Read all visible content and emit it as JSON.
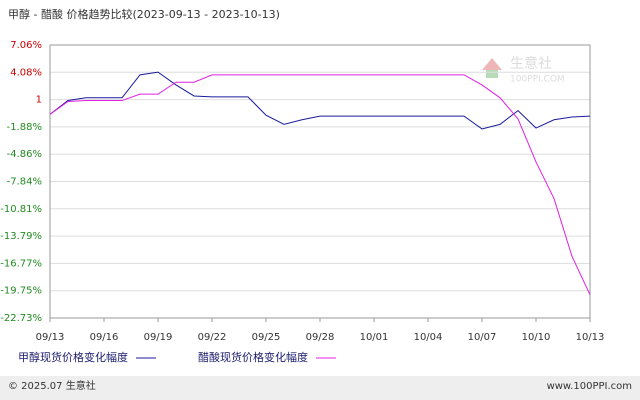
{
  "chart_data": {
    "type": "line",
    "title": "甲醇 - 醋酸 价格趋势比较(2023-09-13 - 2023-10-13)",
    "categories": [
      "09/13",
      null,
      null,
      "09/16",
      null,
      null,
      "09/19",
      null,
      null,
      "09/22",
      null,
      null,
      "09/25",
      null,
      null,
      "09/28",
      null,
      null,
      "10/01",
      null,
      null,
      "10/04",
      null,
      null,
      "10/07",
      null,
      null,
      "10/10",
      null,
      null,
      "10/13"
    ],
    "series": [
      {
        "name": "甲醇现货价格变化幅度",
        "color": "#1a1a9c",
        "values": [
          -0.5,
          1.0,
          1.3,
          1.3,
          1.3,
          3.8,
          4.1,
          2.7,
          1.5,
          1.4,
          1.4,
          1.4,
          -0.6,
          -1.6,
          -1.1,
          -0.7,
          -0.7,
          -0.7,
          -0.7,
          -0.7,
          -0.7,
          -0.7,
          -0.7,
          -0.7,
          -2.1,
          -1.6,
          -0.1,
          -2.0,
          -1.1,
          -0.8,
          -0.7
        ]
      },
      {
        "name": "醋酸现货价格变化幅度",
        "color": "#e020e0",
        "values": [
          -0.5,
          0.9,
          1.0,
          1.0,
          1.0,
          1.7,
          1.7,
          3.0,
          3.0,
          3.8,
          3.8,
          3.8,
          3.8,
          3.8,
          3.8,
          3.8,
          3.8,
          3.8,
          3.8,
          3.8,
          3.8,
          3.8,
          3.8,
          3.8,
          2.7,
          1.3,
          -1.0,
          -5.7,
          -9.7,
          -16.0,
          -20.2
        ]
      }
    ],
    "ylim": [
      -22.73,
      7.06
    ],
    "yticks": [
      {
        "value": 7.06,
        "label": "7.06%"
      },
      {
        "value": 4.08,
        "label": "4.08%"
      },
      {
        "value": 1.1,
        "label": "1"
      },
      {
        "value": -1.88,
        "label": "-1.88%"
      },
      {
        "value": -4.86,
        "label": "-4.86%"
      },
      {
        "value": -7.84,
        "label": "-7.84%"
      },
      {
        "value": -10.81,
        "label": "-10.81%"
      },
      {
        "value": -13.79,
        "label": "-13.79%"
      },
      {
        "value": -16.77,
        "label": "-16.77%"
      },
      {
        "value": -19.75,
        "label": "-19.75%"
      },
      {
        "value": -22.73,
        "label": "-22.73%"
      }
    ],
    "grid": true,
    "watermark": "生意社",
    "watermark_url": "100PPI.COM",
    "footer_left": "© 2025.07 生意社",
    "footer_right": "www.100PPI.com"
  }
}
